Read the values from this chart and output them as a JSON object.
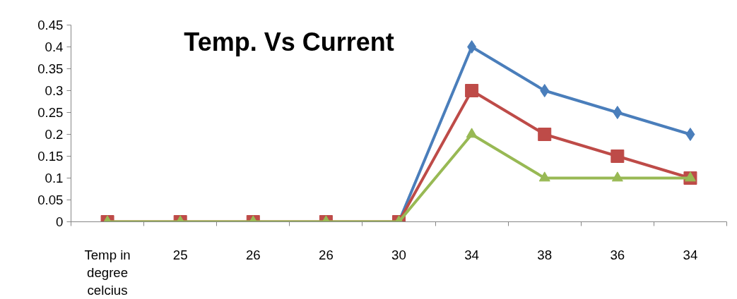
{
  "chart_data": {
    "type": "line",
    "title": "Temp. Vs Current",
    "categories": [
      "Temp in degree celcius",
      "25",
      "26",
      "26",
      "30",
      "34",
      "38",
      "36",
      "34"
    ],
    "series": [
      {
        "color": "#4a7ebb",
        "marker": "diamond",
        "values": [
          null,
          null,
          null,
          null,
          0,
          0.4,
          0.3,
          0.25,
          0.2
        ]
      },
      {
        "color": "#be4b48",
        "marker": "square",
        "values": [
          0,
          0,
          0,
          0,
          0,
          0.3,
          0.2,
          0.15,
          0.1
        ]
      },
      {
        "color": "#98b954",
        "marker": "triangle",
        "values": [
          0,
          0,
          0,
          0,
          0,
          0.2,
          0.1,
          0.1,
          0.1
        ]
      }
    ],
    "ylim": [
      0,
      0.45
    ],
    "yticks": [
      0,
      0.05,
      0.1,
      0.15,
      0.2,
      0.25,
      0.3,
      0.35,
      0.4,
      0.45
    ],
    "grid": false,
    "line_style": "solid"
  }
}
